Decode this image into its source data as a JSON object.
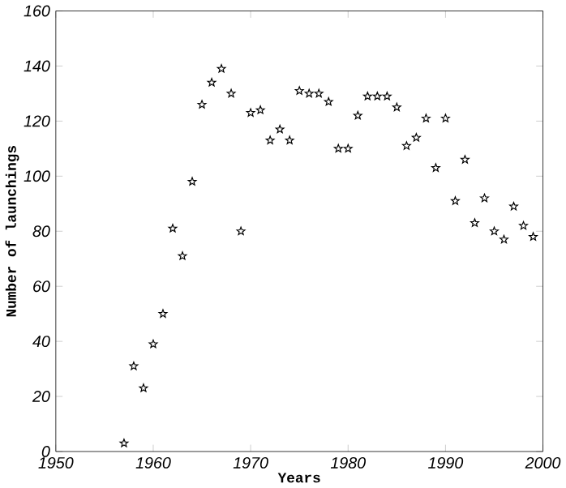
{
  "chart_data": {
    "type": "scatter",
    "xlabel": "Years",
    "ylabel": "Number of launchings",
    "x": [
      1957,
      1958,
      1959,
      1960,
      1961,
      1962,
      1963,
      1964,
      1965,
      1966,
      1967,
      1968,
      1969,
      1970,
      1971,
      1972,
      1973,
      1974,
      1975,
      1976,
      1977,
      1978,
      1979,
      1980,
      1981,
      1982,
      1983,
      1984,
      1985,
      1986,
      1987,
      1988,
      1989,
      1990,
      1991,
      1992,
      1993,
      1994,
      1995,
      1996,
      1997,
      1998,
      1999
    ],
    "values": [
      3,
      31,
      23,
      39,
      50,
      81,
      71,
      98,
      126,
      134,
      139,
      130,
      80,
      123,
      124,
      113,
      117,
      113,
      131,
      130,
      130,
      127,
      110,
      110,
      122,
      129,
      129,
      129,
      125,
      111,
      114,
      121,
      103,
      121,
      91,
      106,
      83,
      92,
      80,
      77,
      89,
      82,
      78
    ],
    "color": "#000000",
    "marker": "star",
    "xlim": [
      1950,
      2000
    ],
    "ylim": [
      0,
      160
    ],
    "xticks": [
      1950,
      1960,
      1970,
      1980,
      1990,
      2000
    ],
    "yticks": [
      0,
      20,
      40,
      60,
      80,
      100,
      120,
      140,
      160
    ]
  }
}
